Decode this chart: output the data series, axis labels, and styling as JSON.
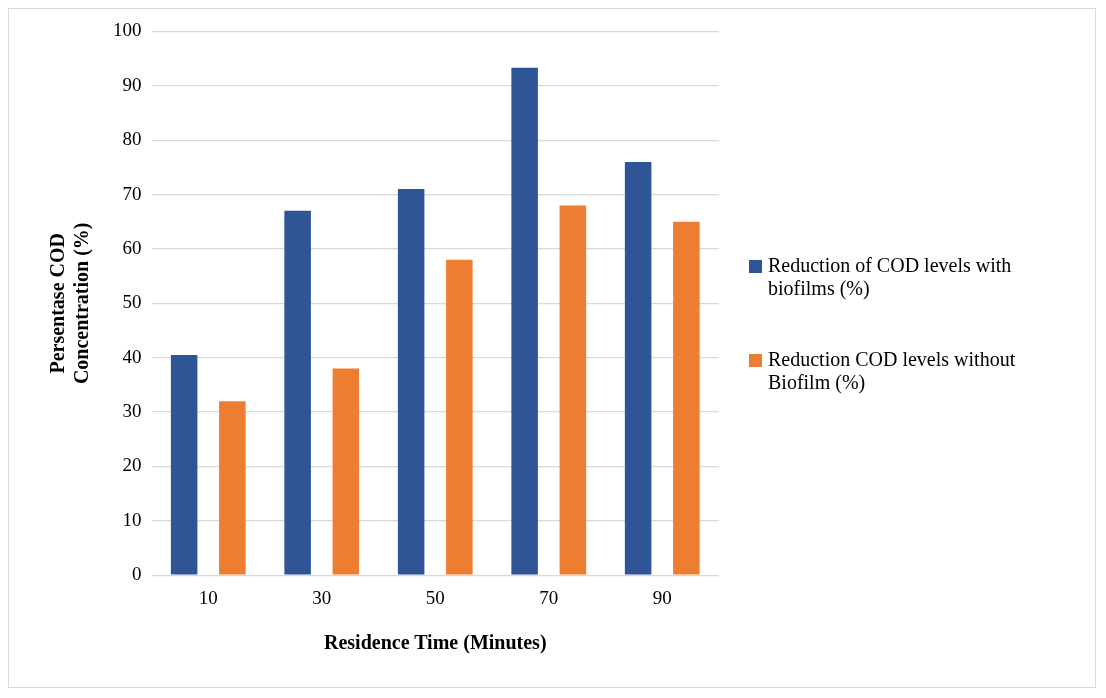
{
  "chart_data": {
    "type": "bar",
    "xlabel": "Residence Time (Minutes)",
    "ylabel": "Persentase COD Concentration (%)",
    "categories": [
      "10",
      "30",
      "50",
      "70",
      "90"
    ],
    "series": [
      {
        "name": "Reduction of COD levels with biofilms (%)",
        "color": "#2f5597",
        "values": [
          40.5,
          67,
          71,
          93.3,
          76
        ]
      },
      {
        "name": "Reduction COD levels without Biofilm (%)",
        "color": "#ed7d31",
        "values": [
          32,
          38,
          58,
          68,
          65
        ]
      }
    ],
    "ylim": [
      0,
      100
    ],
    "yticks": [
      0,
      10,
      20,
      30,
      40,
      50,
      60,
      70,
      80,
      90,
      100
    ],
    "grid": "y",
    "legend": "right"
  }
}
